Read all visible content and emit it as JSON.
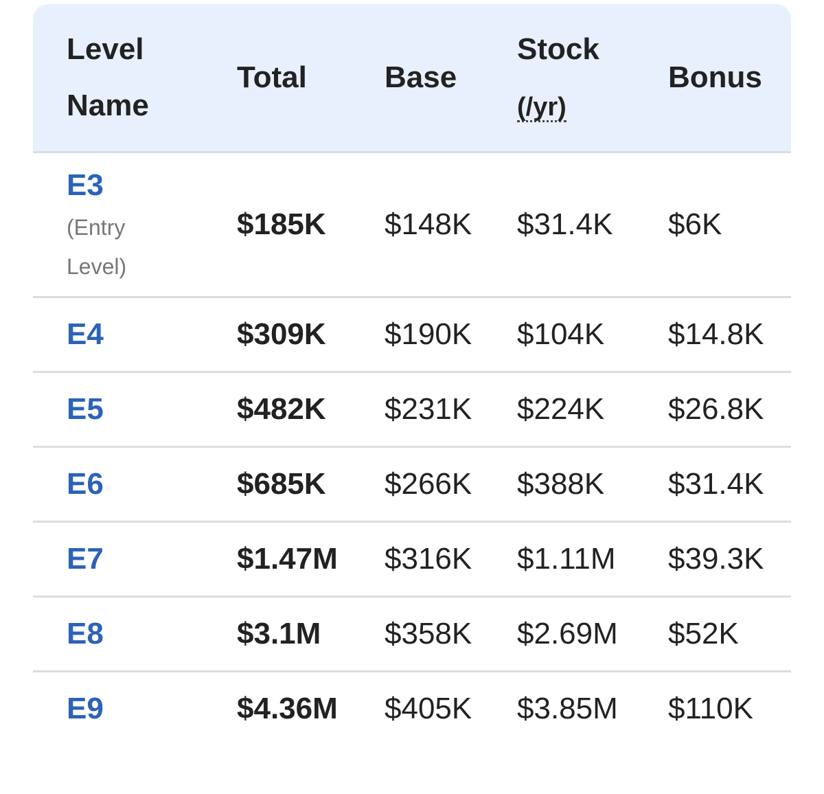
{
  "table": {
    "headers": [
      "Level Name",
      "Total",
      "Base",
      "Stock",
      "Bonus"
    ],
    "stock_unit": "(/yr)",
    "rows": [
      {
        "level": "E3",
        "note": "(Entry Level)",
        "cells": [
          "$185K",
          "$148K",
          "$31.4K",
          "$6K"
        ]
      },
      {
        "level": "E4",
        "cells": [
          "$309K",
          "$190K",
          "$104K",
          "$14.8K"
        ]
      },
      {
        "level": "E5",
        "cells": [
          "$482K",
          "$231K",
          "$224K",
          "$26.8K"
        ]
      },
      {
        "level": "E6",
        "cells": [
          "$685K",
          "$266K",
          "$388K",
          "$31.4K"
        ]
      },
      {
        "level": "E7",
        "cells": [
          "$1.47M",
          "$316K",
          "$1.11M",
          "$39.3K"
        ]
      },
      {
        "level": "E8",
        "cells": [
          "$3.1M",
          "$358K",
          "$2.69M",
          "$52K"
        ]
      },
      {
        "level": "E9",
        "cells": [
          "$4.36M",
          "$405K",
          "$3.85M",
          "$110K"
        ]
      }
    ]
  }
}
